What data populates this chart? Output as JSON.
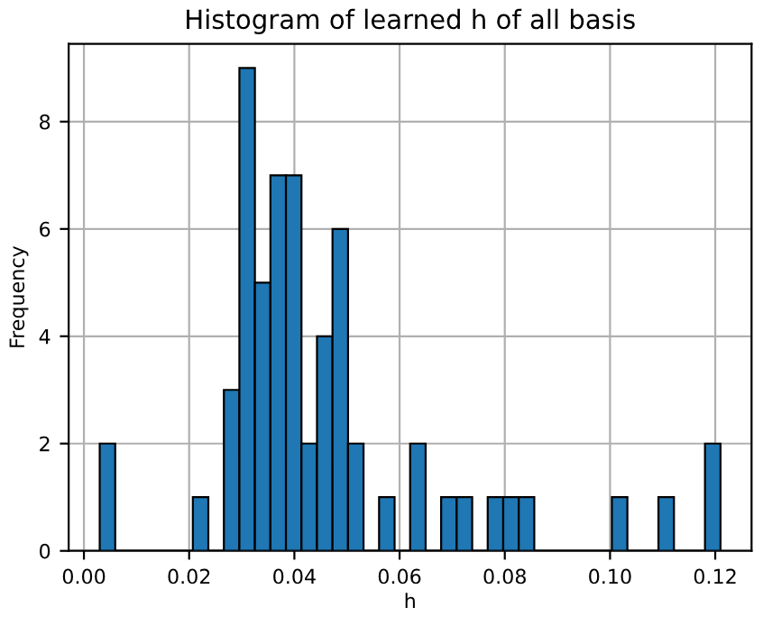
{
  "chart_data": {
    "type": "histogram",
    "title": "Histogram of learned h of all basis",
    "xlabel": "h",
    "ylabel": "Frequency",
    "bins": [
      0.003,
      0.00595,
      0.0089,
      0.01185,
      0.0148,
      0.01775,
      0.0207,
      0.02365,
      0.0266,
      0.02955,
      0.0325,
      0.03545,
      0.0384,
      0.04135,
      0.0443,
      0.04725,
      0.0502,
      0.05315,
      0.0561,
      0.05905,
      0.062,
      0.06495,
      0.0679,
      0.07085,
      0.0738,
      0.07675,
      0.0797,
      0.08265,
      0.0856,
      0.08855,
      0.0915,
      0.09445,
      0.0974,
      0.10035,
      0.1033,
      0.10625,
      0.1092,
      0.11215,
      0.1151,
      0.11805,
      0.121
    ],
    "values": [
      2,
      0,
      0,
      0,
      0,
      0,
      1,
      0,
      3,
      9,
      5,
      7,
      7,
      2,
      4,
      6,
      2,
      0,
      1,
      0,
      2,
      0,
      1,
      1,
      0,
      1,
      1,
      1,
      0,
      0,
      0,
      0,
      0,
      1,
      0,
      0,
      1,
      0,
      0,
      2
    ],
    "color": "#1f77b4",
    "xlim": [
      -0.0029,
      0.1269
    ],
    "xticks": [
      {
        "value": 0,
        "label": "0.00"
      },
      {
        "value": 0.02,
        "label": "0.02"
      },
      {
        "value": 0.04,
        "label": "0.04"
      },
      {
        "value": 0.06,
        "label": "0.06"
      },
      {
        "value": 0.08,
        "label": "0.08"
      },
      {
        "value": 0.1,
        "label": "0.10"
      },
      {
        "value": 0.12,
        "label": "0.12"
      }
    ],
    "ylim": [
      0,
      9.45
    ],
    "yticks": [
      0,
      2,
      4,
      6,
      8
    ],
    "grid": true
  }
}
